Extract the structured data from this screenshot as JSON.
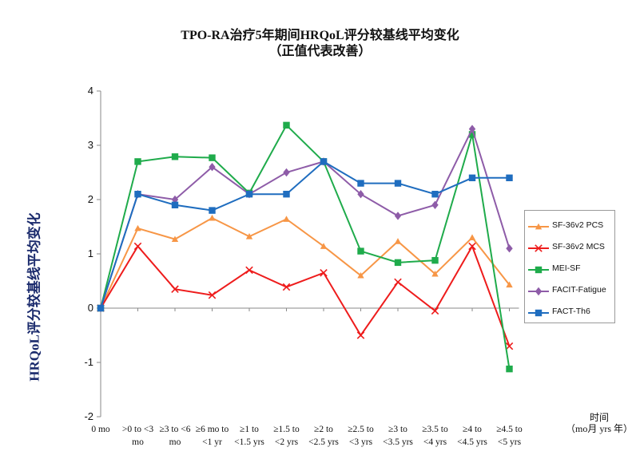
{
  "chart_data": {
    "type": "line",
    "title": "TPO-RA治疗5年期间HRQoL评分较基线平均变化",
    "subtitle": "（正值代表改善）",
    "ylabel": "HRQoL评分较基线平均变化",
    "xlabel_line1": "时间",
    "xlabel_line2": "（mo月 yrs 年）",
    "ylim": [
      -2,
      4
    ],
    "yticks": [
      "4",
      "3",
      "2",
      "1",
      "0",
      "-1",
      "-2"
    ],
    "categories": [
      [
        "0 mo"
      ],
      [
        ">0 to <3",
        "mo"
      ],
      [
        "≥3 to <6",
        "mo"
      ],
      [
        "≥6 mo to",
        "<1 yr"
      ],
      [
        "≥1 to",
        "<1.5 yrs"
      ],
      [
        "≥1.5 to",
        "<2 yrs"
      ],
      [
        "≥2 to",
        "<2.5 yrs"
      ],
      [
        "≥2.5 to",
        "<3 yrs"
      ],
      [
        "≥3 to",
        "<3.5 yrs"
      ],
      [
        "≥3.5 to",
        "<4 yrs"
      ],
      [
        "≥4 to",
        "<4.5 yrs"
      ],
      [
        "≥4.5 to",
        "<5 yrs"
      ]
    ],
    "series": [
      {
        "name": "SF-36v2 PCS",
        "color": "#f79646",
        "marker": "triangle",
        "values": [
          0,
          1.47,
          1.27,
          1.66,
          1.32,
          1.64,
          1.14,
          0.6,
          1.23,
          0.63,
          1.3,
          0.43
        ]
      },
      {
        "name": "SF-36v2 MCS",
        "color": "#ee1c1c",
        "marker": "x",
        "values": [
          0,
          1.14,
          0.35,
          0.24,
          0.7,
          0.39,
          0.65,
          -0.5,
          0.48,
          -0.05,
          1.14,
          -0.7
        ]
      },
      {
        "name": "MEI-SF",
        "color": "#1fab4b",
        "marker": "square",
        "values": [
          0,
          2.7,
          2.79,
          2.77,
          2.12,
          3.37,
          2.7,
          1.05,
          0.84,
          0.88,
          3.2,
          -1.12
        ]
      },
      {
        "name": "FACIT-Fatigue",
        "color": "#8e5ca8",
        "marker": "diamond",
        "values": [
          0,
          2.1,
          2.0,
          2.6,
          2.1,
          2.5,
          2.7,
          2.1,
          1.7,
          1.9,
          3.3,
          1.1
        ]
      },
      {
        "name": "FACT-Th6",
        "color": "#1f6dbf",
        "marker": "square",
        "values": [
          0,
          2.1,
          1.9,
          1.8,
          2.1,
          2.1,
          2.7,
          2.3,
          2.3,
          2.1,
          2.4,
          2.4
        ]
      }
    ],
    "grid": false,
    "legend": "right"
  }
}
